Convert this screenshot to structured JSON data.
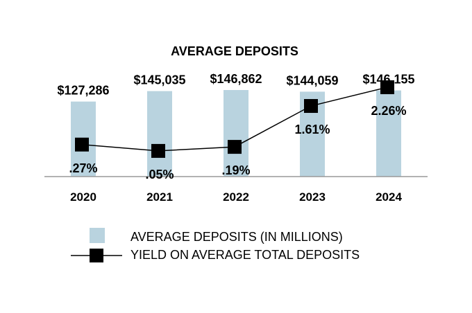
{
  "chart_data": {
    "type": "bar+line",
    "title": "AVERAGE DEPOSITS",
    "categories": [
      "2020",
      "2021",
      "2022",
      "2023",
      "2024"
    ],
    "series": [
      {
        "name": "AVERAGE DEPOSITS (IN MILLIONS)",
        "kind": "bar",
        "values": [
          127286,
          145035,
          146862,
          144059,
          146155
        ],
        "labels": [
          "$127,286",
          "$145,035",
          "$146,862",
          "$144,059",
          "$146,155"
        ]
      },
      {
        "name": "YIELD ON AVERAGE TOTAL DEPOSITS",
        "kind": "line",
        "values": [
          0.27,
          0.05,
          0.19,
          1.61,
          2.26
        ],
        "labels": [
          ".27%",
          ".05%",
          ".19%",
          "1.61%",
          "2.26%"
        ]
      }
    ],
    "xlabel": "",
    "ylabel": "",
    "grid": false,
    "legend_position": "bottom",
    "colors": {
      "bar": "#b9d3df",
      "line": "#000000",
      "axis": "#999999"
    }
  }
}
